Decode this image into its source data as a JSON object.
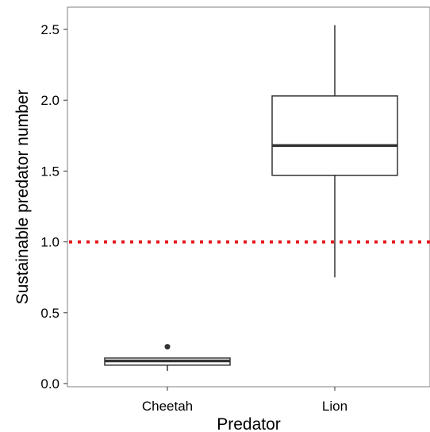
{
  "chart_data": {
    "type": "box",
    "xlabel": "Predator",
    "ylabel": "Sustainable predator number",
    "ylim": [
      0,
      2.65
    ],
    "yticks": [
      "0.0",
      "0.5",
      "1.0",
      "1.5",
      "2.0",
      "2.5"
    ],
    "categories": [
      "Cheetah",
      "Lion"
    ],
    "boxes": [
      {
        "category": "Cheetah",
        "min": 0.09,
        "q1": 0.13,
        "median": 0.16,
        "q3": 0.18,
        "max": 0.18,
        "outliers": [
          0.26
        ]
      },
      {
        "category": "Lion",
        "min": 0.75,
        "q1": 1.47,
        "median": 1.68,
        "q3": 2.03,
        "max": 2.53,
        "outliers": []
      }
    ],
    "reference_line": {
      "y": 1.0,
      "color": "#e31a1c",
      "style": "dotted"
    },
    "grid": false,
    "colors": {
      "box_stroke": "#333333",
      "box_fill": "#ffffff",
      "panel_border": "#7f7f7f"
    }
  }
}
